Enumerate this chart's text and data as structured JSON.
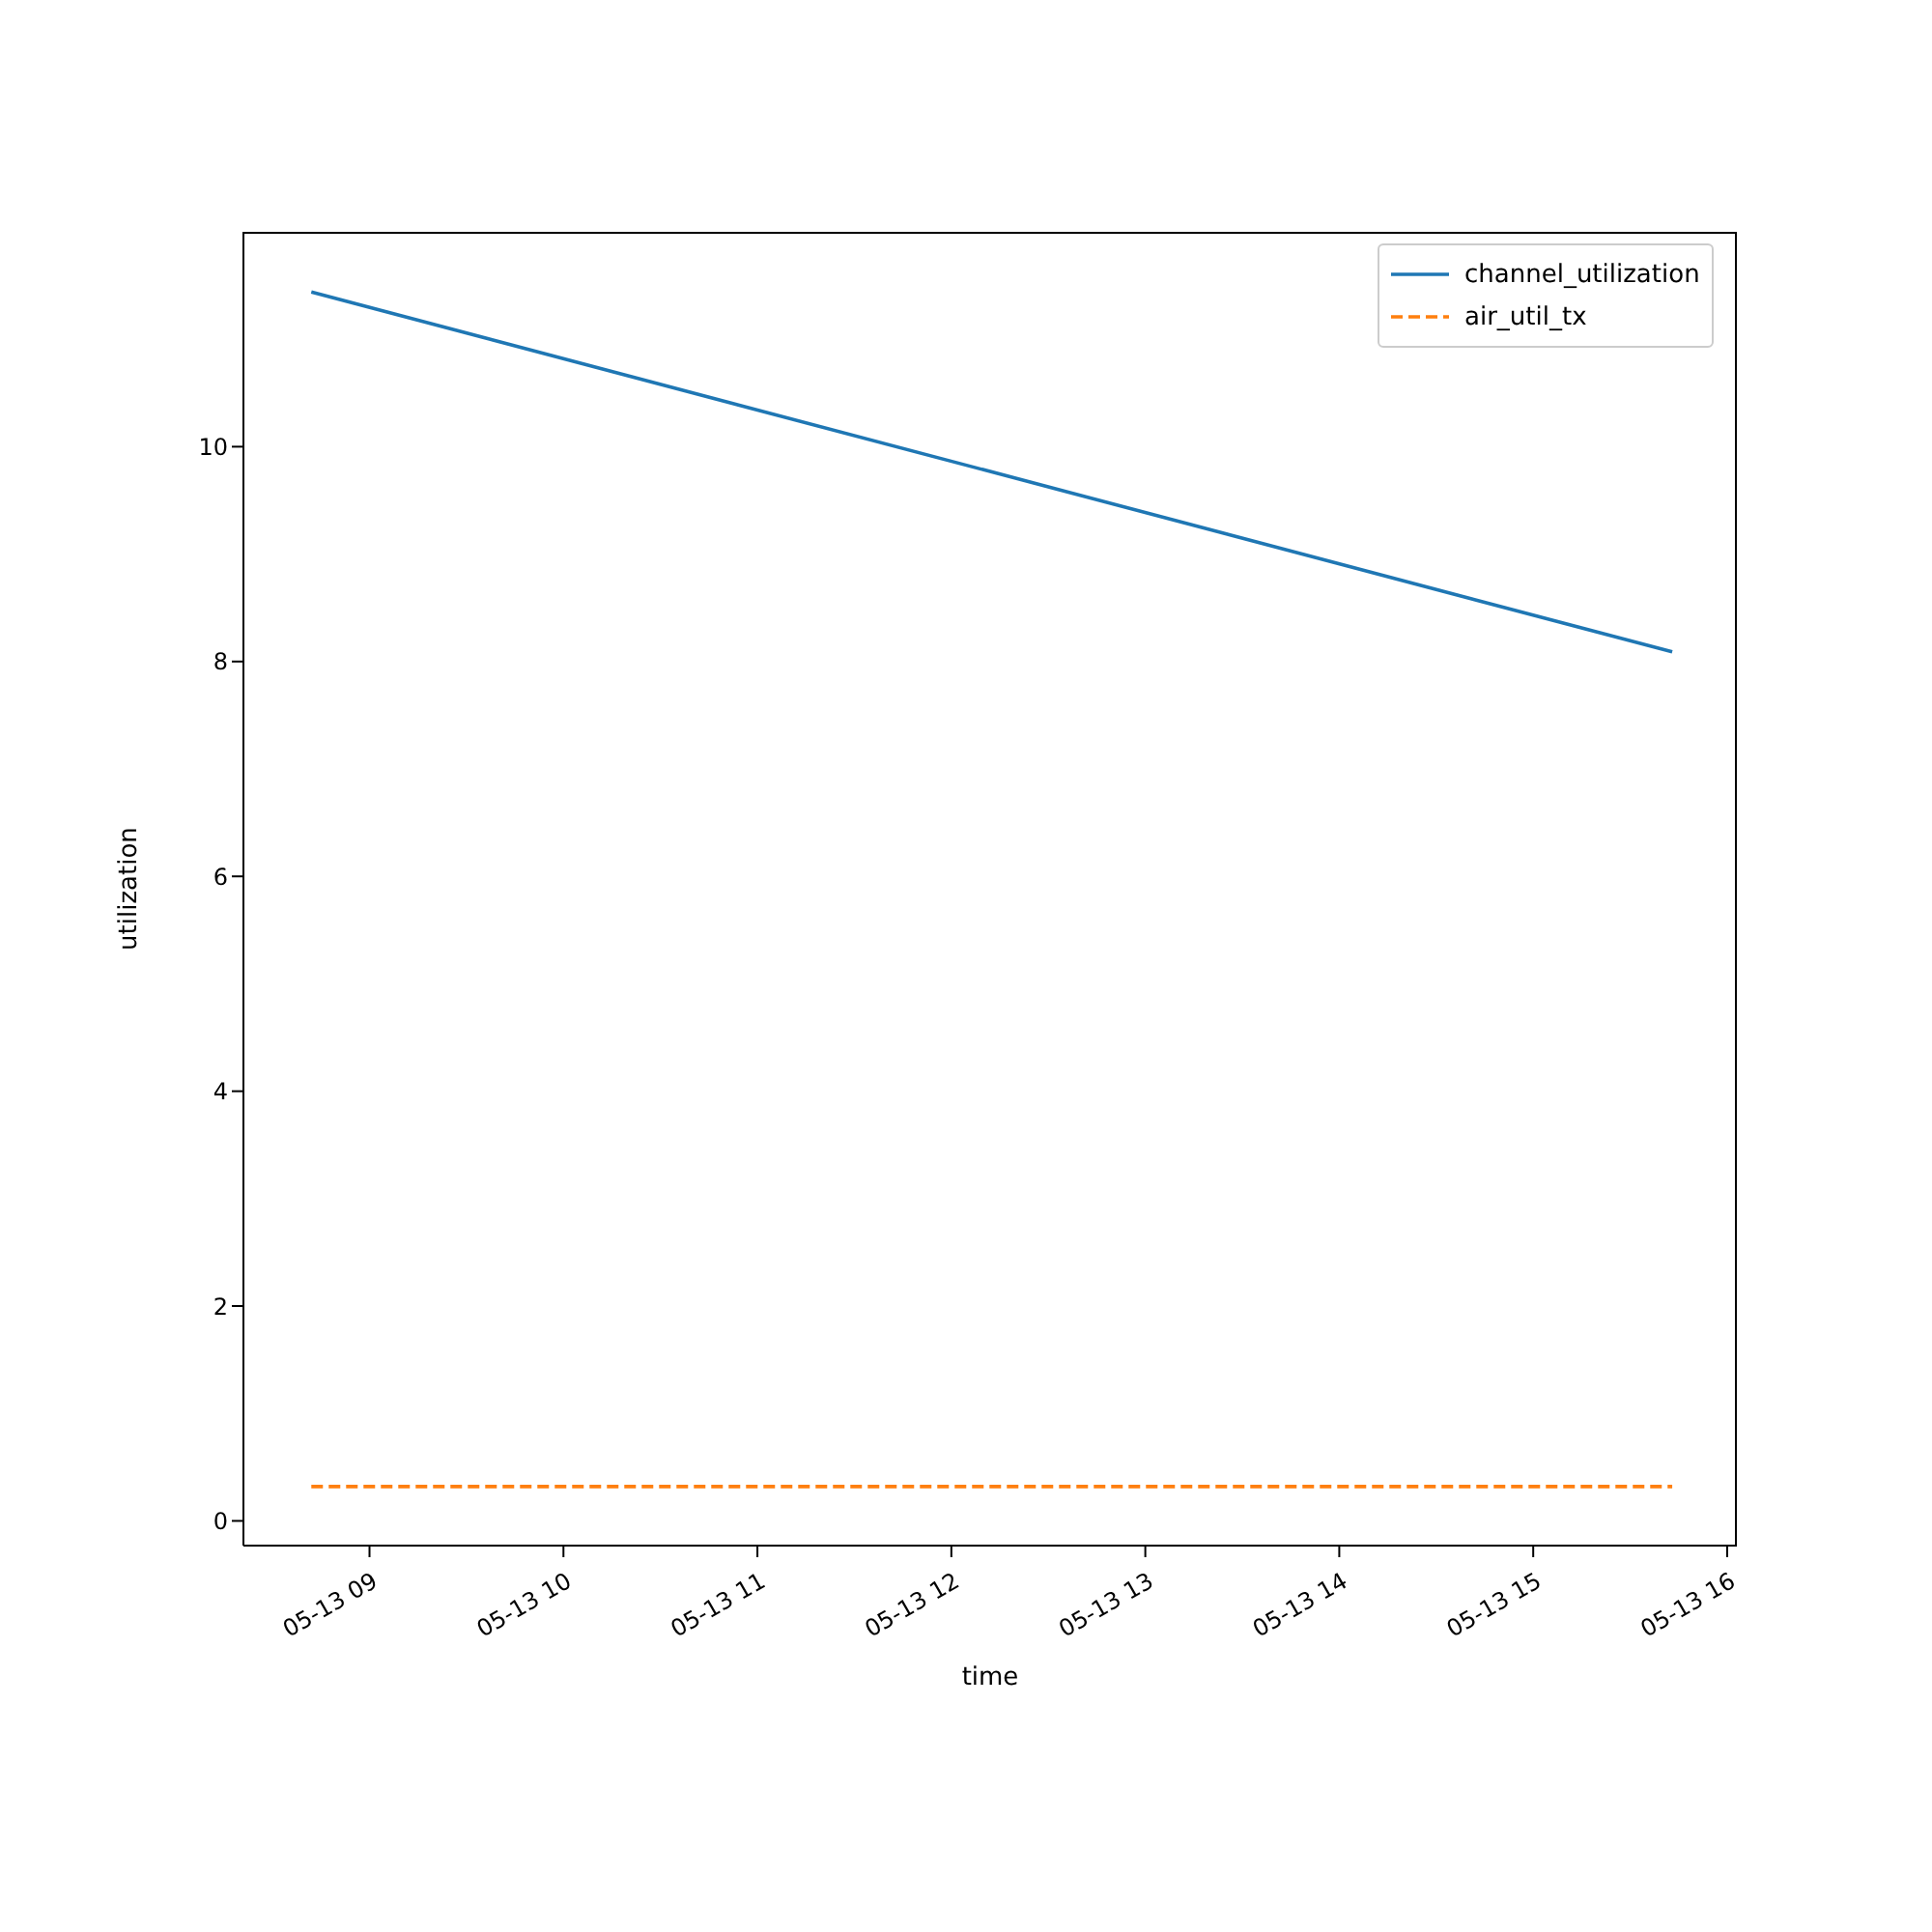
{
  "chart_data": {
    "type": "line",
    "xlabel": "time",
    "ylabel": "utilization",
    "xlim": [
      "--05-13T08:21",
      "--05-13T16:03"
    ],
    "xticks": [
      {
        "value": "--05-13T09:00",
        "label": "05-13 09"
      },
      {
        "value": "--05-13T10:00",
        "label": "05-13 10"
      },
      {
        "value": "--05-13T11:00",
        "label": "05-13 11"
      },
      {
        "value": "--05-13T12:00",
        "label": "05-13 12"
      },
      {
        "value": "--05-13T13:00",
        "label": "05-13 13"
      },
      {
        "value": "--05-13T14:00",
        "label": "05-13 14"
      },
      {
        "value": "--05-13T15:00",
        "label": "05-13 15"
      },
      {
        "value": "--05-13T16:00",
        "label": "05-13 16"
      }
    ],
    "ylim": [
      -0.23,
      12.0
    ],
    "yticks": [
      0,
      2,
      4,
      6,
      8,
      10
    ],
    "series": [
      {
        "name": "channel_utilization",
        "color": "#1f77b4",
        "x": [
          "--05-13T08:42",
          "--05-13T15:43"
        ],
        "values": [
          11.44,
          8.09
        ],
        "line_style": "solid"
      },
      {
        "name": "air_util_tx",
        "color": "#ff7f0e",
        "x": [
          "--05-13T08:42",
          "--05-13T15:43"
        ],
        "values": [
          0.32,
          0.32
        ],
        "line_style": "dashed"
      }
    ],
    "legend": "top right",
    "grid": false,
    "marker": "none"
  }
}
